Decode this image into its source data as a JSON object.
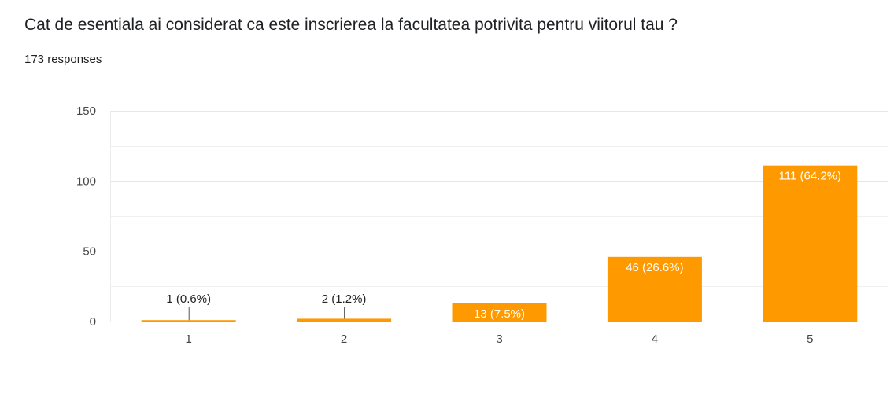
{
  "question": {
    "title": "Cat de esentiala ai considerat ca este inscrierea la facultatea potrivita pentru viitorul tau ?",
    "responses": "173 responses"
  },
  "colors": {
    "bar": "#ff9900",
    "grid": "#e6e6e6",
    "baseline": "#333333",
    "label_inside": "#ffffff",
    "label_outside": "#222222"
  },
  "chart_data": {
    "type": "bar",
    "categories": [
      "1",
      "2",
      "3",
      "4",
      "5"
    ],
    "values": [
      1,
      2,
      13,
      46,
      111
    ],
    "data_labels": [
      "1 (0.6%)",
      "2 (1.2%)",
      "13 (7.5%)",
      "46 (26.6%)",
      "111 (64.2%)"
    ],
    "yticks": [
      "0",
      "50",
      "100",
      "150"
    ],
    "ylim": [
      0,
      150
    ],
    "grid": true,
    "title": "",
    "xlabel": "",
    "ylabel": ""
  }
}
